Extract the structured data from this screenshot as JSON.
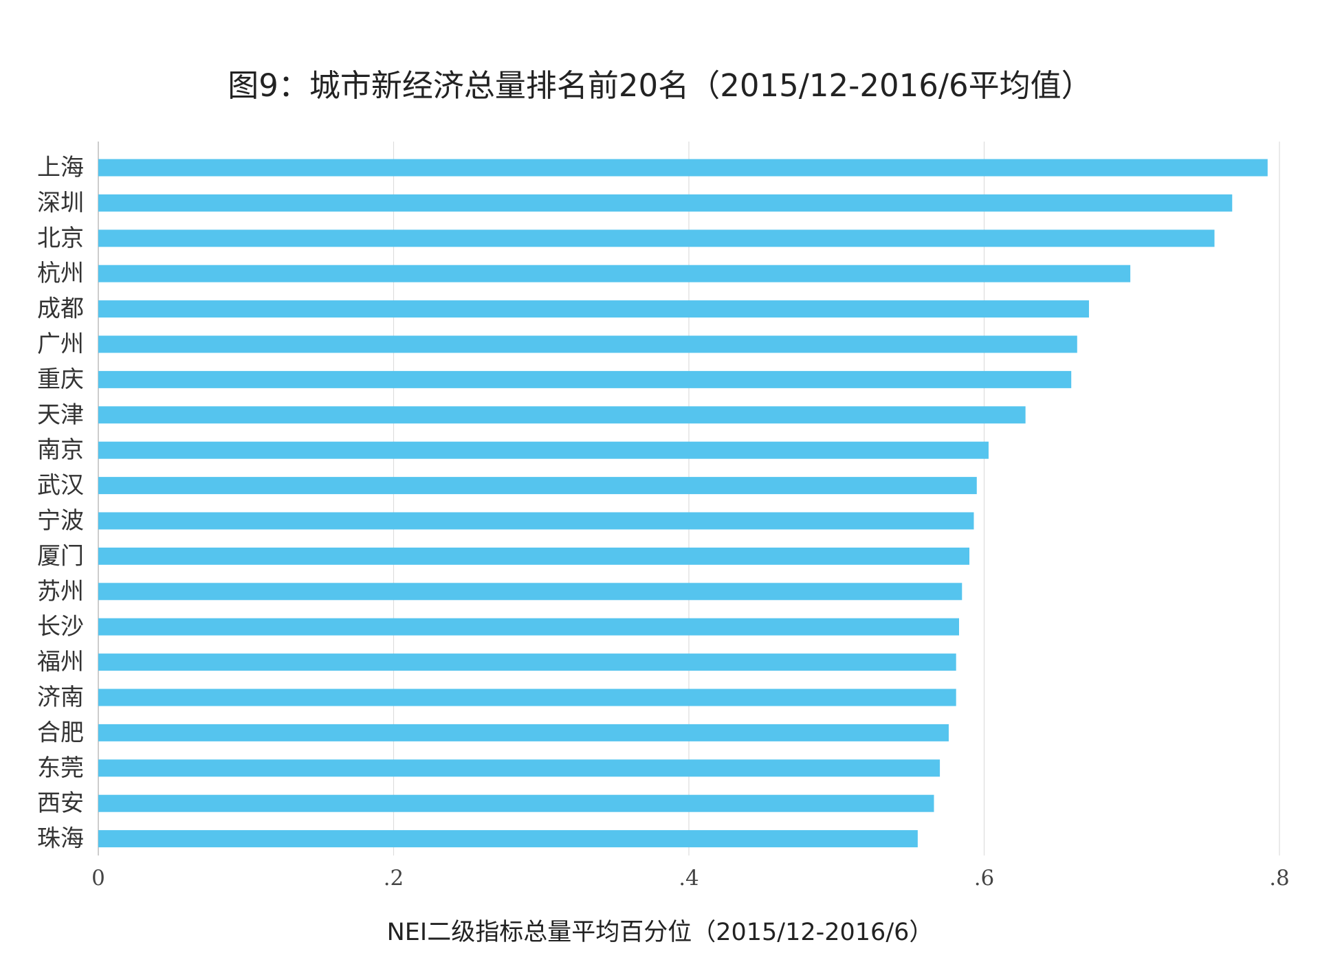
{
  "chart_data": {
    "type": "bar",
    "orientation": "horizontal",
    "title": "图9：城市新经济总量排名前20名（2015/12-2016/6平均值）",
    "xlabel": "NEI二级指标总量平均百分位（2015/12-2016/6）",
    "ylabel": "",
    "categories": [
      "上海",
      "深圳",
      "北京",
      "杭州",
      "成都",
      "广州",
      "重庆",
      "天津",
      "南京",
      "武汉",
      "宁波",
      "厦门",
      "苏州",
      "长沙",
      "福州",
      "济南",
      "合肥",
      "东莞",
      "西安",
      "珠海"
    ],
    "values": [
      0.792,
      0.768,
      0.756,
      0.699,
      0.671,
      0.663,
      0.659,
      0.628,
      0.603,
      0.595,
      0.593,
      0.59,
      0.585,
      0.583,
      0.581,
      0.581,
      0.576,
      0.57,
      0.566,
      0.555
    ],
    "xlim": [
      0,
      0.8
    ],
    "xticks": [
      0,
      0.2,
      0.4,
      0.6,
      0.8
    ],
    "xtick_labels": [
      "0",
      ".2",
      ".4",
      ".6",
      ".8"
    ],
    "grid": "vertical",
    "legend": "none",
    "bar_color": "#55c4ee",
    "grid_color": "#dddddd",
    "axis_color": "#cccccc"
  }
}
